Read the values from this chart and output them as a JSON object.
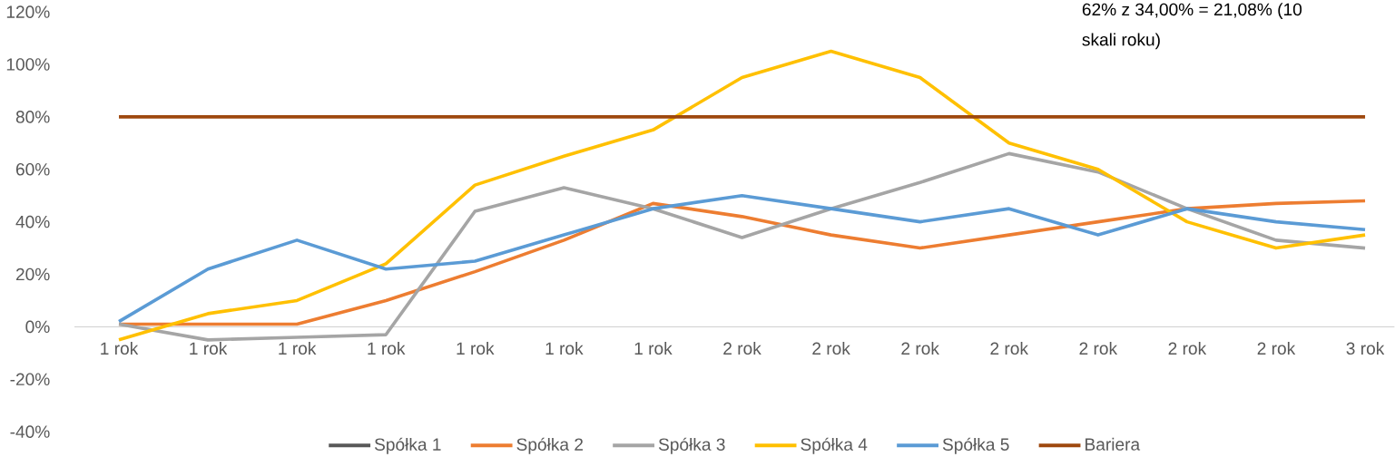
{
  "chart_data": {
    "type": "line",
    "categories": [
      "1 rok",
      "1 rok",
      "1 rok",
      "1 rok",
      "1 rok",
      "1 rok",
      "1 rok",
      "2 rok",
      "2 rok",
      "2 rok",
      "2 rok",
      "2 rok",
      "2 rok",
      "2 rok",
      "3 rok"
    ],
    "series": [
      {
        "name": "Spółka 1",
        "color": "#595959",
        "values": [
          null,
          null,
          null,
          null,
          null,
          null,
          null,
          null,
          null,
          null,
          null,
          null,
          null,
          null,
          null
        ]
      },
      {
        "name": "Spółka 2",
        "color": "#ed7d31",
        "values": [
          1,
          1,
          1,
          10,
          21,
          33,
          47,
          42,
          35,
          30,
          35,
          40,
          45,
          47,
          48
        ]
      },
      {
        "name": "Spółka 3",
        "color": "#a5a5a5",
        "values": [
          1,
          -5,
          -4,
          -3,
          44,
          53,
          45,
          34,
          45,
          55,
          66,
          59,
          45,
          33,
          30
        ]
      },
      {
        "name": "Spółka 4",
        "color": "#ffc000",
        "values": [
          -5,
          5,
          10,
          24,
          54,
          65,
          75,
          95,
          105,
          95,
          70,
          60,
          40,
          30,
          35
        ]
      },
      {
        "name": "Spółka 5",
        "color": "#5b9bd5",
        "values": [
          2,
          22,
          33,
          22,
          25,
          35,
          45,
          50,
          45,
          40,
          45,
          35,
          45,
          40,
          37
        ]
      },
      {
        "name": "Bariera",
        "color": "#9e480e",
        "values": [
          80,
          80,
          80,
          80,
          80,
          80,
          80,
          80,
          80,
          80,
          80,
          80,
          80,
          80,
          80
        ]
      }
    ],
    "ylim": [
      -40,
      120
    ],
    "yticks": [
      {
        "value": -40,
        "label": "-40%"
      },
      {
        "value": -20,
        "label": "-20%"
      },
      {
        "value": 0,
        "label": "0%"
      },
      {
        "value": 20,
        "label": "20%"
      },
      {
        "value": 40,
        "label": "40%"
      },
      {
        "value": 60,
        "label": "60%"
      },
      {
        "value": 80,
        "label": "80%"
      },
      {
        "value": 100,
        "label": "100%"
      },
      {
        "value": 120,
        "label": "120%"
      }
    ],
    "legend": "bottom",
    "annotations": [
      "62% z 34,00% = 21,08% (10",
      "skali roku)"
    ]
  }
}
